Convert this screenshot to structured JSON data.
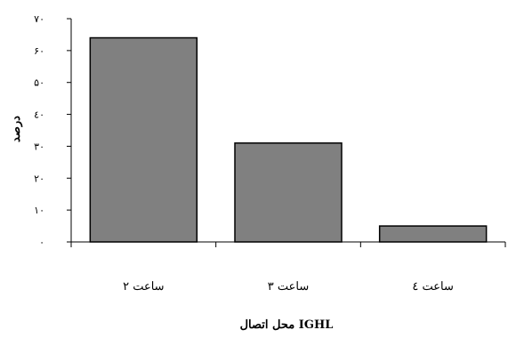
{
  "chart_data": {
    "type": "bar",
    "categories": [
      "ساعت ۲",
      "ساعت ۳",
      "ساعت ٤"
    ],
    "values": [
      64,
      31,
      5
    ],
    "title": "",
    "xlabel": "محل اتصال IGHL",
    "ylabel": "درصد",
    "ylim": [
      0,
      70
    ],
    "yticks": [
      0,
      10,
      20,
      30,
      40,
      50,
      60,
      70
    ],
    "ytick_labels": [
      "۰",
      "۱۰",
      "۲۰",
      "۳۰",
      "٤۰",
      "۵۰",
      "۶۰",
      "۷۰"
    ],
    "grid": false,
    "legend": "none",
    "bar_color": "#808080",
    "bar_edge_color": "#000000"
  }
}
